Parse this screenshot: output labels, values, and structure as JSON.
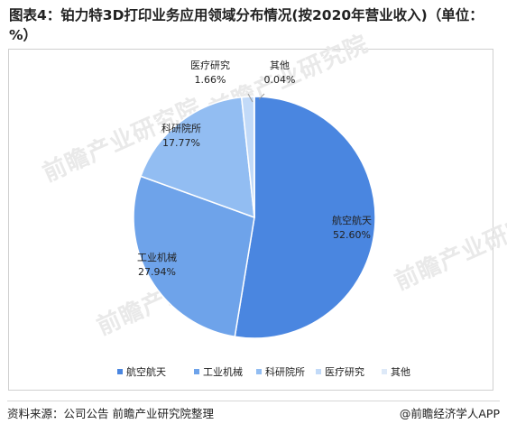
{
  "title": "图表4：铂力特3D打印业务应用领域分布情况(按2020年营业收入)（单位：%）",
  "watermark": "前瞻产业研究院",
  "chart_data": {
    "type": "pie",
    "start_angle_deg": 0,
    "direction": "clockwise",
    "slices": [
      {
        "label": "航空航天",
        "value": 52.6,
        "value_text": "52.60%",
        "color": "#4a86e0"
      },
      {
        "label": "工业机械",
        "value": 27.94,
        "value_text": "27.94%",
        "color": "#6ea3ea"
      },
      {
        "label": "科研院所",
        "value": 17.77,
        "value_text": "17.77%",
        "color": "#92bdf2"
      },
      {
        "label": "医疗研究",
        "value": 1.66,
        "value_text": "1.66%",
        "color": "#c2daf8"
      },
      {
        "label": "其他",
        "value": 0.04,
        "value_text": "0.04%",
        "color": "#dde9f8"
      }
    ],
    "legend_position": "bottom"
  },
  "footer": {
    "source": "资料来源：公司公告 前瞻产业研究院整理",
    "brand": "@前瞻经济学人APP"
  }
}
